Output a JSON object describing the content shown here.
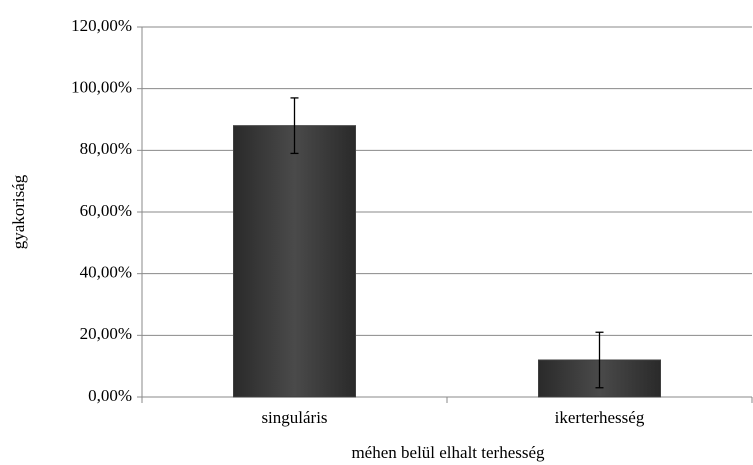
{
  "chart_data": {
    "type": "bar",
    "x_label": "méhen belül elhalt terhesség",
    "y_label": "gyakoriság",
    "categories": [
      "singuláris",
      "ikerterhesség"
    ],
    "values": [
      88,
      12
    ],
    "errors": [
      9,
      9
    ],
    "color": "#3f3f3f",
    "ylim": [
      0,
      120
    ],
    "yticks": [
      {
        "value": 0,
        "label": "0,00%"
      },
      {
        "value": 20,
        "label": "20,00%"
      },
      {
        "value": 40,
        "label": "40,00%"
      },
      {
        "value": 60,
        "label": "60,00%"
      },
      {
        "value": 80,
        "label": "80,00%"
      },
      {
        "value": 100,
        "label": "100,00%"
      },
      {
        "value": 120,
        "label": "120,00%"
      }
    ],
    "grid": true
  }
}
